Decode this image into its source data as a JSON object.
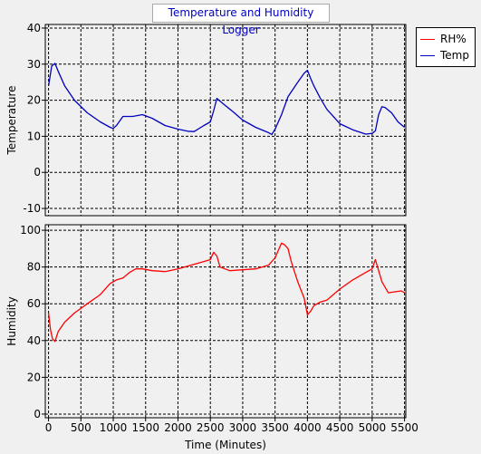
{
  "title": "Temperature and Humidity Logger",
  "legend": [
    {
      "label": "RH%",
      "color": "#ff0000"
    },
    {
      "label": "Temp",
      "color": "#0000c0"
    }
  ],
  "chart_data": [
    {
      "type": "line",
      "ylabel": "Temperature",
      "ylim": [
        -12,
        41
      ],
      "yticks": [
        40,
        30,
        20,
        10,
        0,
        -10
      ],
      "grid": true,
      "series": [
        {
          "name": "Temp",
          "color": "#0000c0",
          "x": [
            0,
            50,
            100,
            150,
            250,
            400,
            600,
            800,
            950,
            1000,
            1050,
            1150,
            1300,
            1450,
            1600,
            1800,
            2000,
            2150,
            2250,
            2400,
            2500,
            2550,
            2600,
            2700,
            2850,
            3000,
            3200,
            3400,
            3450,
            3500,
            3600,
            3700,
            3850,
            3950,
            4000,
            4050,
            4100,
            4200,
            4300,
            4400,
            4500,
            4700,
            4900,
            5000,
            5050,
            5100,
            5150,
            5200,
            5300,
            5400,
            5500
          ],
          "y": [
            24,
            29.5,
            30.2,
            28,
            24,
            20,
            16.5,
            14,
            12.5,
            12.2,
            13,
            15.5,
            15.5,
            16,
            15,
            13,
            12,
            11.4,
            11.3,
            13,
            14,
            17,
            20.5,
            19,
            16.8,
            14.5,
            12.5,
            11,
            10.5,
            12,
            16,
            21,
            25,
            27.5,
            28.3,
            26,
            24,
            20.5,
            17.5,
            15.5,
            13.5,
            11.8,
            10.6,
            10.8,
            11.5,
            16,
            18.2,
            18,
            16.5,
            14,
            12.5
          ]
        }
      ]
    },
    {
      "type": "line",
      "xlabel": "Time (Minutes)",
      "ylabel": "Humidity",
      "xlim": [
        -50,
        5520
      ],
      "ylim": [
        -2,
        103
      ],
      "xticks": [
        0,
        500,
        1000,
        1500,
        2000,
        2500,
        3000,
        3500,
        4000,
        4500,
        5000,
        5500
      ],
      "yticks": [
        100,
        80,
        60,
        40,
        20,
        0
      ],
      "grid": true,
      "series": [
        {
          "name": "RH%",
          "color": "#ff0000",
          "x": [
            0,
            30,
            60,
            100,
            150,
            250,
            400,
            600,
            800,
            950,
            1050,
            1150,
            1250,
            1350,
            1450,
            1600,
            1800,
            2000,
            2200,
            2400,
            2500,
            2550,
            2600,
            2650,
            2800,
            3000,
            3200,
            3400,
            3500,
            3550,
            3600,
            3650,
            3700,
            3750,
            3850,
            3950,
            4000,
            4050,
            4100,
            4200,
            4300,
            4500,
            4700,
            4900,
            5000,
            5050,
            5100,
            5150,
            5250,
            5350,
            5450,
            5500
          ],
          "y": [
            55,
            46,
            41,
            39.5,
            45,
            50,
            55,
            60,
            65,
            71,
            73,
            74,
            77,
            79,
            79,
            78,
            77.5,
            79,
            81,
            83,
            84,
            88,
            86,
            80,
            78,
            78.5,
            79,
            81,
            85,
            89,
            93,
            92,
            90,
            83,
            72,
            63,
            54,
            56,
            59,
            61,
            62,
            68,
            73,
            77,
            79,
            84,
            78,
            72,
            66,
            66.5,
            67,
            66
          ]
        }
      ]
    }
  ]
}
